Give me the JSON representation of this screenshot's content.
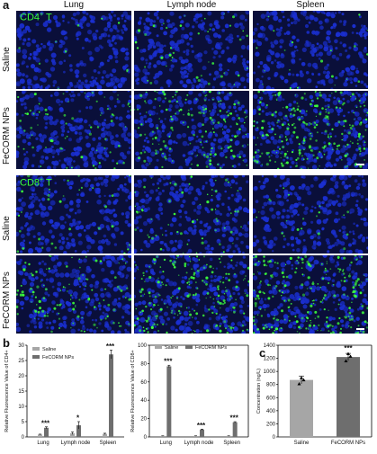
{
  "panel_a": {
    "letter": "a",
    "columns": [
      "Lung",
      "Lymph node",
      "Spleen"
    ],
    "group1": {
      "marker_main": "CD4",
      "marker_sup": "+",
      "marker_tail": " T",
      "rows": [
        "Saline",
        "FeCORM NPs"
      ]
    },
    "group2": {
      "marker_main": "CD8",
      "marker_sup": "+",
      "marker_tail": " T",
      "rows": [
        "Saline",
        "FeCORM NPs"
      ]
    },
    "colors": {
      "nucleus": "#1a2fd0",
      "cd_cells": "#3cff3c",
      "background": "#0a0f3a"
    }
  },
  "panel_b": {
    "letter": "b"
  },
  "panel_c": {
    "letter": "c"
  },
  "chart_data": [
    {
      "type": "bar",
      "ylabel": "Relative Fluorescence Value of CD4+",
      "categories": [
        "Lung",
        "Lymph node",
        "Spleen"
      ],
      "series": [
        {
          "name": "Saline",
          "values": [
            0.8,
            1.2,
            1.0
          ],
          "errors": [
            0.1,
            0.4,
            0.2
          ],
          "color": "#a6a6a6"
        },
        {
          "name": "FeCORM NPs",
          "values": [
            3.0,
            3.8,
            27.0
          ],
          "errors": [
            0.3,
            1.2,
            1.4
          ],
          "color": "#6e6e6e"
        }
      ],
      "significance": [
        "***",
        "*",
        "***"
      ],
      "ylim": [
        0,
        30
      ],
      "yticks": [
        0,
        5,
        10,
        15,
        20,
        25,
        30
      ],
      "legend_position": "top-left"
    },
    {
      "type": "bar",
      "ylabel": "Relative Fluorescence Value of CD8+",
      "categories": [
        "Lung",
        "Lymph node",
        "Spleen"
      ],
      "series": [
        {
          "name": "Saline",
          "values": [
            1.0,
            1.0,
            1.0
          ],
          "errors": [
            0.2,
            0.2,
            0.2
          ],
          "color": "#a6a6a6"
        },
        {
          "name": "FeCORM NPs",
          "values": [
            77.0,
            8.0,
            16.0
          ],
          "errors": [
            1.2,
            0.5,
            0.6
          ],
          "color": "#6e6e6e"
        }
      ],
      "significance": [
        "***",
        "***",
        "***"
      ],
      "ylim": [
        0,
        100
      ],
      "yticks": [
        0,
        20,
        40,
        60,
        80,
        100
      ],
      "legend_position": "top"
    },
    {
      "type": "bar",
      "ylabel": "Concentration (ng/L)",
      "categories": [
        "Saline",
        "FeCORM NPs"
      ],
      "values": [
        870,
        1220
      ],
      "errors": [
        60,
        55
      ],
      "points": [
        [
          810,
          900,
          870
        ],
        [
          1160,
          1270,
          1230
        ]
      ],
      "colors": [
        "#a6a6a6",
        "#6e6e6e"
      ],
      "significance": [
        "",
        "***"
      ],
      "ylim": [
        0,
        1400
      ],
      "yticks": [
        0,
        200,
        400,
        600,
        800,
        1000,
        1200,
        1400
      ]
    }
  ]
}
